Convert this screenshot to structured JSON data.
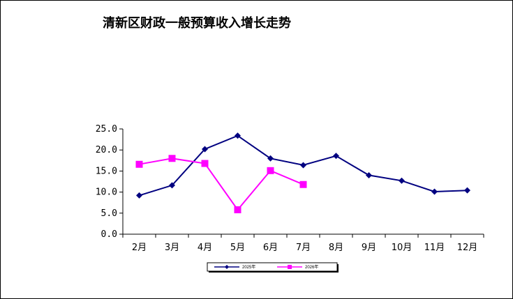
{
  "chart_data": {
    "type": "line",
    "title": "清新区财政一般预算收入增长走势",
    "categories": [
      "2月",
      "3月",
      "4月",
      "5月",
      "6月",
      "7月",
      "8月",
      "9月",
      "10月",
      "11月",
      "12月"
    ],
    "ylim": [
      0,
      25
    ],
    "yticks": [
      "0.0",
      "5.0",
      "10.0",
      "15.0",
      "20.0",
      "25.0"
    ],
    "grid": false,
    "legend_position": "bottom",
    "series": [
      {
        "name": "2025年",
        "color": "#000080",
        "marker": "diamond",
        "values": [
          9.2,
          11.6,
          20.2,
          23.4,
          18.0,
          16.4,
          18.6,
          14.0,
          12.7,
          10.1,
          10.4
        ]
      },
      {
        "name": "2026年",
        "color": "#FF00FF",
        "marker": "square",
        "values": [
          16.6,
          18.0,
          16.8,
          5.8,
          15.1,
          11.8,
          null,
          null,
          null,
          null,
          null
        ]
      }
    ]
  }
}
